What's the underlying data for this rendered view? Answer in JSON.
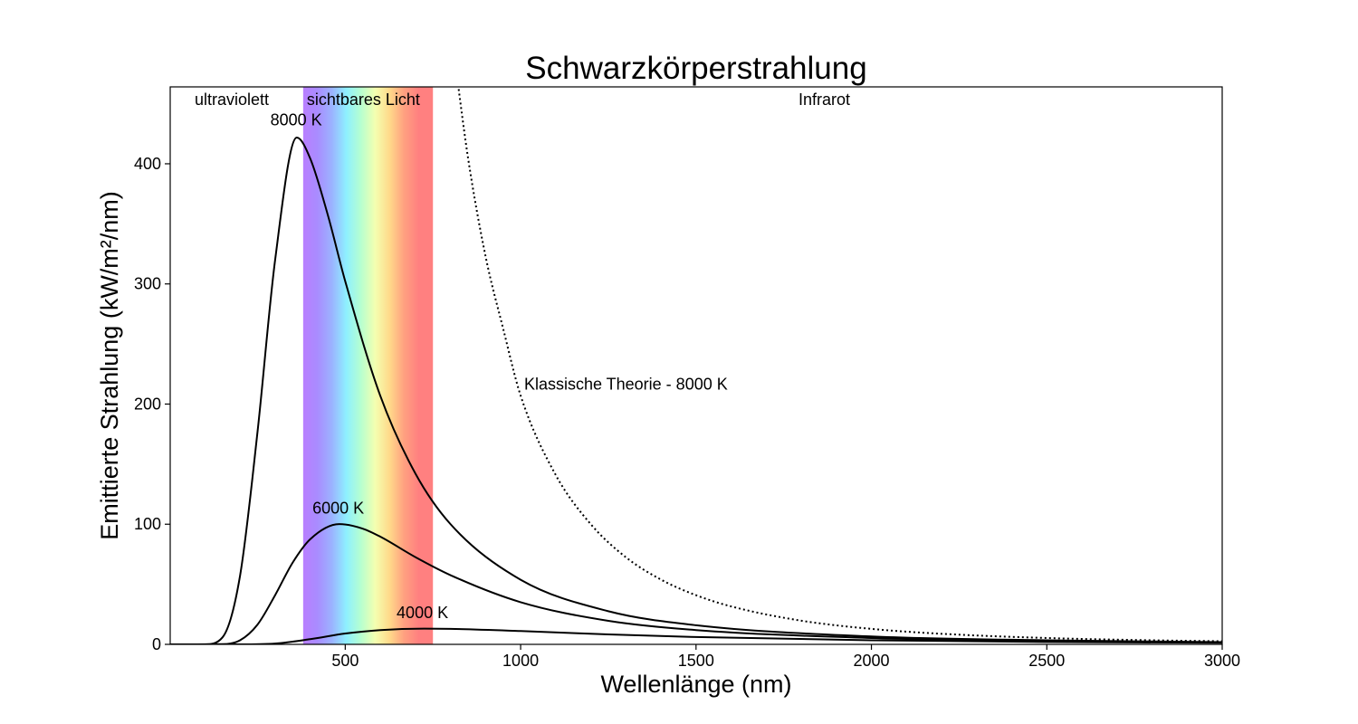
{
  "chart_data": {
    "type": "line",
    "title": "Schwarzkörperstrahlung",
    "xlabel": "Wellenlänge (nm)",
    "ylabel": "Emittierte Strahlung (kW/m²/nm)",
    "xlim": [
      1,
      3000
    ],
    "ylim": [
      0,
      464
    ],
    "x_ticks": [
      500,
      1000,
      1500,
      2000,
      2500,
      3000
    ],
    "y_ticks": [
      0,
      100,
      200,
      300,
      400
    ],
    "grid": false,
    "legend": "none",
    "regions": [
      {
        "label": "ultraviolett",
        "x_range": [
          1,
          380
        ]
      },
      {
        "label": "sichtbares Licht",
        "x_range": [
          380,
          750
        ]
      },
      {
        "label": "Infrarot",
        "x_range": [
          750,
          3000
        ]
      }
    ],
    "spectrum_colors": [
      "#b97fff",
      "#a98cff",
      "#9bb3ff",
      "#8ef0ff",
      "#b6ffd0",
      "#f4ffb0",
      "#ffd98a",
      "#ffa080",
      "#ff8080",
      "#ff8080"
    ],
    "series": [
      {
        "name": "8000 K",
        "temperature_K": 8000,
        "style": "solid",
        "label_at": [
          360,
          432
        ],
        "x": [
          100,
          150,
          200,
          250,
          300,
          362,
          400,
          450,
          500,
          600,
          700,
          800,
          1000,
          1250,
          1500,
          2000,
          2500,
          3000
        ],
        "y": [
          0.04,
          5.8,
          56.9,
          177.1,
          319.7,
          421.8,
          404.5,
          357.7,
          302.2,
          206.8,
          142.2,
          100.1,
          53.8,
          27.6,
          15.9,
          6.6,
          3.4,
          1.9
        ]
      },
      {
        "name": "6000 K",
        "temperature_K": 6000,
        "style": "solid",
        "label_at": [
          480,
          109
        ],
        "x": [
          150,
          200,
          250,
          300,
          350,
          400,
          483,
          550,
          600,
          700,
          800,
          1000,
          1250,
          1500,
          2000,
          2500,
          3000
        ],
        "y": [
          0.14,
          3.4,
          16.5,
          40.9,
          68.0,
          87.5,
          100.1,
          96.3,
          89.6,
          72.6,
          57.6,
          35.1,
          19.6,
          11.9,
          5.3,
          2.7,
          1.6
        ]
      },
      {
        "name": "4000 K",
        "temperature_K": 4000,
        "style": "solid",
        "label_at": [
          720,
          22
        ],
        "x": [
          200,
          300,
          400,
          500,
          600,
          725,
          800,
          1000,
          1250,
          1500,
          2000,
          2500,
          3000
        ],
        "y": [
          0.0,
          0.67,
          4.3,
          9.0,
          11.9,
          13.1,
          12.9,
          11.1,
          8.3,
          6.1,
          3.4,
          2.0,
          1.3
        ]
      },
      {
        "name": "Klassische Theorie - 8000 K",
        "temperature_K": 8000,
        "style": "dotted",
        "label_at": [
          1010,
          212
        ],
        "x": [
          810,
          850,
          900,
          950,
          1000,
          1100,
          1200,
          1300,
          1400,
          1500,
          1600,
          1800,
          2000,
          2200,
          2500,
          2800,
          3000
        ],
        "y": [
          492,
          405,
          323,
          263,
          207,
          141,
          100,
          72.5,
          53.9,
          40.9,
          31.6,
          19.7,
          12.9,
          8.8,
          5.3,
          3.4,
          2.6
        ]
      }
    ]
  }
}
